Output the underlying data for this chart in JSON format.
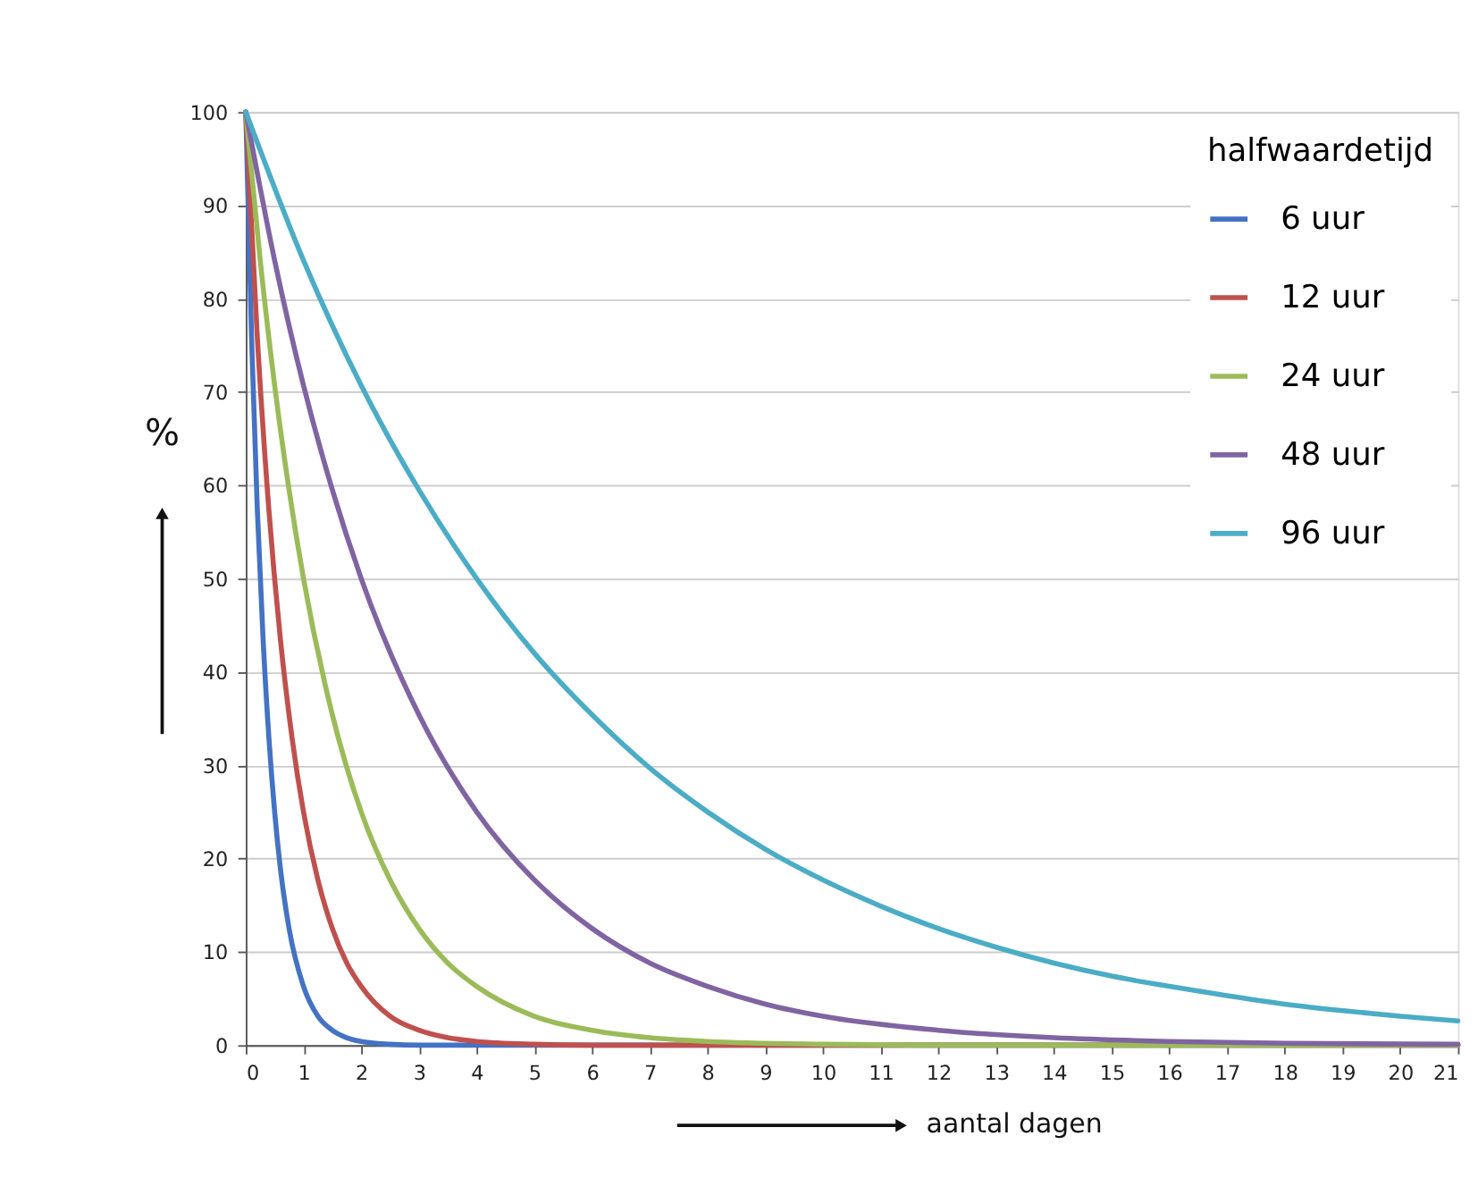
{
  "chart_data": {
    "type": "line",
    "xlabel": "aantal dagen",
    "ylabel": "%",
    "legend_title": "halfwaardetijd",
    "xlim": [
      0,
      21
    ],
    "xticks": [
      0,
      1,
      2,
      3,
      4,
      5,
      6,
      7,
      8,
      9,
      10,
      11,
      12,
      13,
      14,
      15,
      16,
      17,
      18,
      19,
      20,
      21
    ],
    "ylim": [
      0,
      100
    ],
    "yticks": [
      0,
      10,
      20,
      30,
      40,
      50,
      60,
      70,
      80,
      90,
      100
    ],
    "grid": "y",
    "legend": "top right",
    "marker": "none",
    "line_style": "solid",
    "series": [
      {
        "name": "6 uur",
        "color": "#4472c4",
        "x": [
          0,
          0.1,
          0.2,
          0.3,
          0.4,
          0.5,
          0.6,
          0.75,
          1,
          1.25,
          1.5,
          1.75,
          2,
          2.5,
          3,
          21
        ],
        "values": [
          100,
          75.8,
          57.4,
          43.5,
          33.0,
          25,
          18.9,
          12.5,
          6.3,
          3.1,
          1.6,
          0.8,
          0.4,
          0.1,
          0,
          0
        ]
      },
      {
        "name": "12 uur",
        "color": "#c0504d",
        "x": [
          0,
          0.2,
          0.4,
          0.6,
          0.8,
          1,
          1.25,
          1.5,
          1.75,
          2,
          2.5,
          3,
          3.5,
          4,
          5,
          6,
          21
        ],
        "values": [
          100,
          75.8,
          57.4,
          43.5,
          33.0,
          25,
          17.7,
          12.5,
          8.8,
          6.3,
          3.1,
          1.6,
          0.8,
          0.4,
          0.1,
          0,
          0
        ]
      },
      {
        "name": "24 uur",
        "color": "#9bbb59",
        "x": [
          0,
          0.25,
          0.5,
          0.75,
          1,
          1.5,
          2,
          2.5,
          3,
          3.5,
          4,
          5,
          6,
          7,
          8,
          10,
          12,
          21
        ],
        "values": [
          100,
          84.1,
          70.7,
          59.5,
          50,
          35.4,
          25,
          17.7,
          12.5,
          8.8,
          6.3,
          3.1,
          1.6,
          0.8,
          0.4,
          0.1,
          0,
          0
        ]
      },
      {
        "name": "48 uur",
        "color": "#8064a2",
        "x": [
          0,
          0.5,
          1,
          1.5,
          2,
          3,
          4,
          5,
          6,
          7,
          8,
          9,
          10,
          12,
          14,
          16,
          18,
          21
        ],
        "values": [
          100,
          84.1,
          70.7,
          59.5,
          50,
          35.4,
          25,
          17.7,
          12.5,
          8.8,
          6.3,
          4.4,
          3.1,
          1.6,
          0.8,
          0.4,
          0.2,
          0.1
        ]
      },
      {
        "name": "96 uur",
        "color": "#4bacc6",
        "x": [
          0,
          1,
          2,
          3,
          4,
          5,
          6,
          7,
          8,
          9,
          10,
          11,
          12,
          13,
          14,
          15,
          16,
          17,
          18,
          19,
          20,
          21
        ],
        "values": [
          100,
          84.1,
          70.7,
          59.5,
          50,
          42.0,
          35.4,
          29.7,
          25,
          21.0,
          17.7,
          14.9,
          12.5,
          10.5,
          8.8,
          7.4,
          6.3,
          5.3,
          4.4,
          3.7,
          3.1,
          2.6
        ]
      }
    ]
  }
}
